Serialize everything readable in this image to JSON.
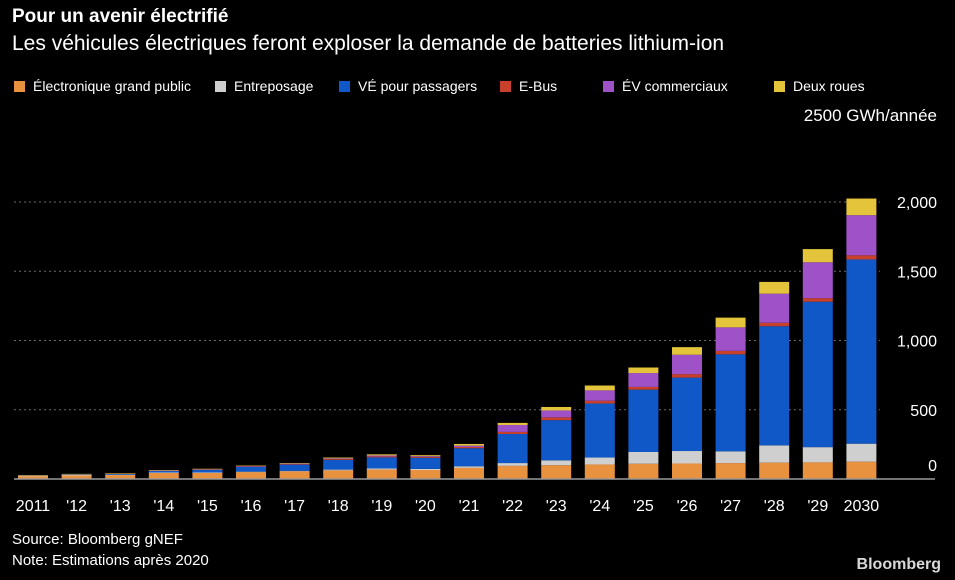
{
  "header": {
    "title": "Pour un avenir électrifié",
    "subtitle": "Les véhicules électriques feront exploser la demande de batteries lithium-ion"
  },
  "unit_label": "2500 GWh/année",
  "footer": {
    "source": "Source: Bloomberg gNEF",
    "note": "Note: Estimations après 2020",
    "brand": "Bloomberg"
  },
  "chart_data": {
    "type": "bar",
    "stacked": true,
    "categories": [
      "2011",
      "'12",
      "'13",
      "'14",
      "'15",
      "'16",
      "'17",
      "'18",
      "'19",
      "'20",
      "'21",
      "'22",
      "'23",
      "'24",
      "'25",
      "'26",
      "'27",
      "'28",
      "'29",
      "2030"
    ],
    "series": [
      {
        "name": "Électronique grand public",
        "color": "#e8913f",
        "values": [
          22,
          28,
          30,
          45,
          45,
          50,
          55,
          62,
          68,
          65,
          80,
          95,
          100,
          105,
          110,
          112,
          115,
          118,
          120,
          125
        ]
      },
      {
        "name": "Entreposage",
        "color": "#cfcfcf",
        "values": [
          1,
          1,
          1,
          2,
          2,
          3,
          4,
          6,
          8,
          8,
          12,
          20,
          35,
          50,
          85,
          90,
          85,
          125,
          110,
          130
        ]
      },
      {
        "name": "VÉ pour passagers",
        "color": "#1058c8",
        "values": [
          4,
          6,
          8,
          12,
          20,
          35,
          45,
          70,
          80,
          80,
          130,
          210,
          290,
          390,
          450,
          530,
          700,
          860,
          1050,
          1330
        ]
      },
      {
        "name": "E-Bus",
        "color": "#c7402b",
        "values": [
          1,
          1,
          1,
          2,
          3,
          4,
          4,
          6,
          7,
          6,
          9,
          15,
          20,
          20,
          20,
          25,
          25,
          25,
          25,
          30
        ]
      },
      {
        "name": "ÉV commerciaux",
        "color": "#9f52c7",
        "values": [
          0,
          0,
          0,
          1,
          2,
          2,
          3,
          5,
          7,
          6,
          10,
          50,
          50,
          75,
          100,
          140,
          170,
          210,
          260,
          290
        ]
      },
      {
        "name": "Deux roues",
        "color": "#e3c43a",
        "values": [
          1,
          1,
          1,
          2,
          2,
          3,
          4,
          6,
          8,
          7,
          12,
          15,
          25,
          35,
          40,
          55,
          70,
          85,
          95,
          120
        ]
      }
    ],
    "y_ticks": [
      "0",
      "500",
      "1,000",
      "1,500",
      "2,000"
    ],
    "y_tick_values": [
      0,
      500,
      1000,
      1500,
      2000
    ],
    "ylim": [
      0,
      2150
    ],
    "ylabel": "2500 GWh/année",
    "grid": true,
    "legend_position": "top",
    "axis_side": "right"
  }
}
